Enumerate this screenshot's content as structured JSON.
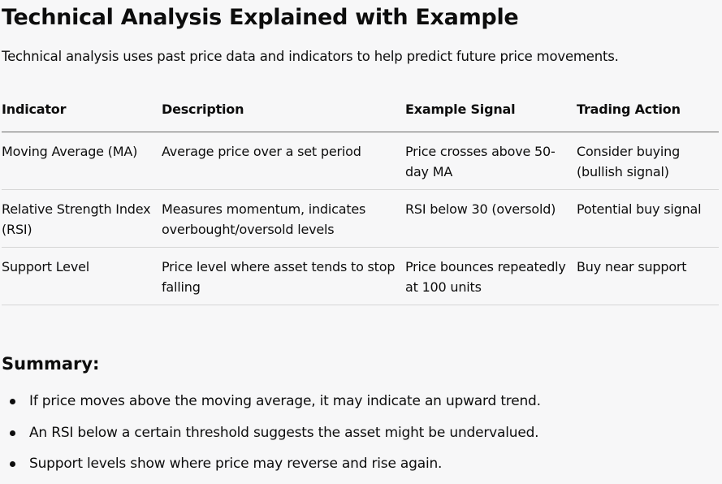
{
  "title": "Technical Analysis Explained with Example",
  "intro": "Technical analysis uses past price data and indicators to help predict future price movements.",
  "table": {
    "headers": [
      "Indicator",
      "Description",
      "Example Signal",
      "Trading Action"
    ],
    "rows": [
      [
        "Moving Average (MA)",
        "Average price over a set period",
        "Price crosses above 50-day MA",
        "Consider buying (bullish signal)"
      ],
      [
        "Relative Strength Index (RSI)",
        "Measures momentum, indicates overbought/oversold levels",
        "RSI below 30 (oversold)",
        "Potential buy signal"
      ],
      [
        "Support Level",
        "Price level where asset tends to stop falling",
        "Price bounces repeatedly at 100 units",
        "Buy near support"
      ]
    ]
  },
  "summary": {
    "heading": "Summary:",
    "items": [
      "If price moves above the moving average, it may indicate an upward trend.",
      "An RSI below a certain threshold suggests the asset might be undervalued.",
      "Support levels show where price may reverse and rise again."
    ]
  }
}
